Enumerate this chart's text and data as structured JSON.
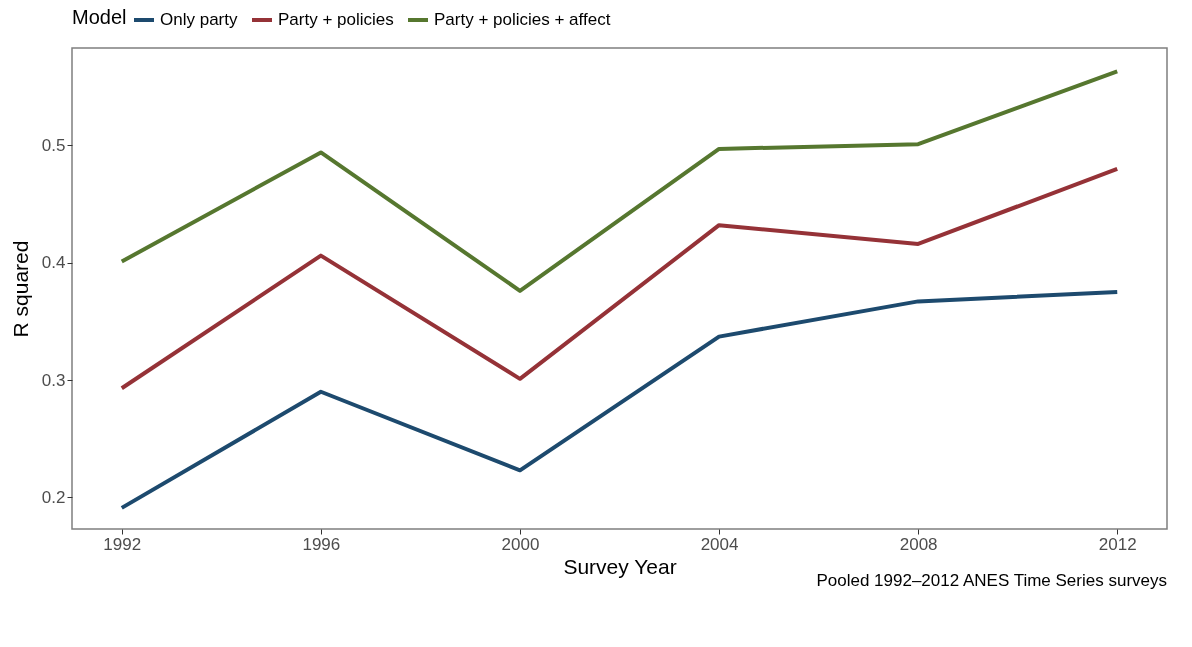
{
  "chart_data": {
    "type": "line",
    "xlabel": "Survey Year",
    "ylabel": "R squared",
    "legend_title": "Model",
    "legend": "top",
    "grid": false,
    "line_style": "solid",
    "marker": "none",
    "annotations": [
      "Pooled 1992–2012 ANES Time Series surveys"
    ],
    "x": [
      1992,
      1996,
      2000,
      2004,
      2008,
      2012
    ],
    "xlim": [
      1991,
      2013
    ],
    "xticks": [
      1992,
      1996,
      2000,
      2004,
      2008,
      2012
    ],
    "ylim": [
      0.173,
      0.583
    ],
    "yticks": [
      0.2,
      0.3,
      0.4,
      0.5
    ],
    "series": [
      {
        "name": "Only party",
        "color": "#1d4a6e",
        "values": [
          0.191,
          0.29,
          0.223,
          0.337,
          0.367,
          0.375
        ]
      },
      {
        "name": "Party + policies",
        "color": "#953237",
        "values": [
          0.293,
          0.406,
          0.301,
          0.432,
          0.416,
          0.48
        ]
      },
      {
        "name": "Party + policies + affect",
        "color": "#56772f",
        "values": [
          0.401,
          0.494,
          0.376,
          0.497,
          0.501,
          0.563
        ]
      }
    ]
  }
}
